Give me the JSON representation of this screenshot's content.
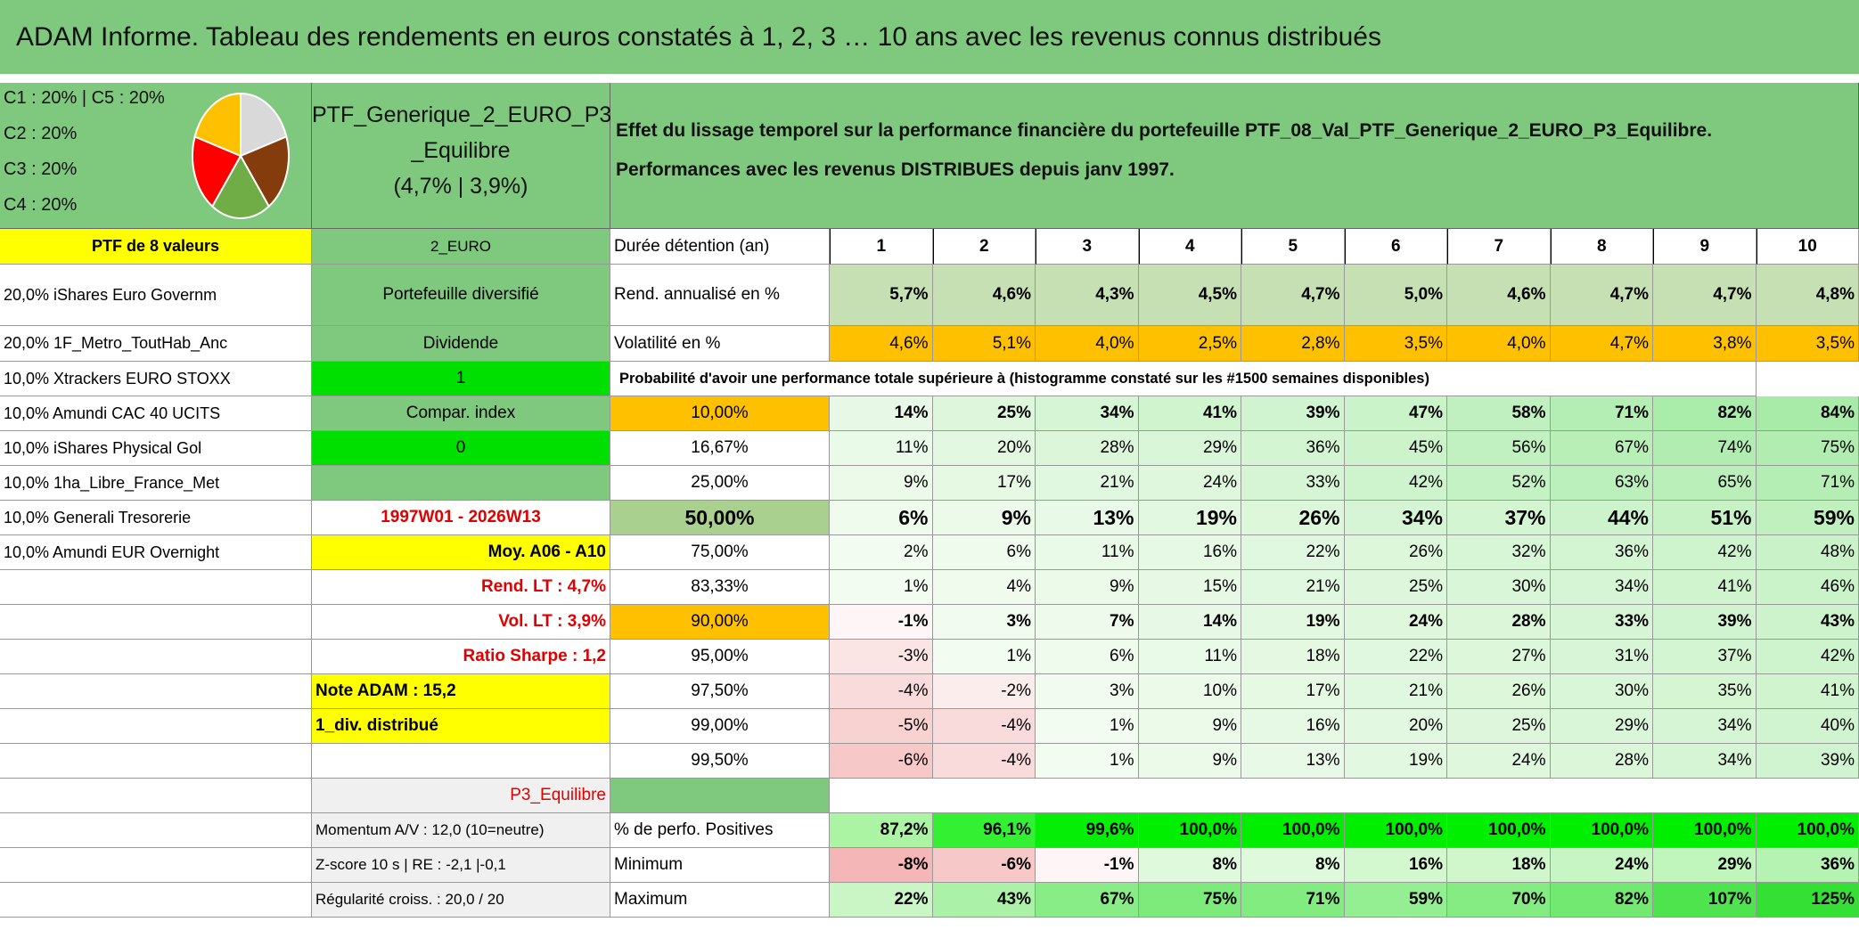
{
  "title": "ADAM Informe. Tableau des rendements en euros constatés à 1, 2, 3 … 10 ans avec les revenus connus distribués",
  "legend": [
    "C1 : 20% | C5 : 20%",
    "C2 : 20%",
    "C3 : 20%",
    "C4 : 20%"
  ],
  "pie": {
    "values": [
      20,
      20,
      20,
      20,
      20
    ],
    "colors": [
      "#d9d9d9",
      "#843c0c",
      "#70ad47",
      "#ff0000",
      "#ffc000"
    ]
  },
  "portfolio": [
    "PTF_Generique_2_EURO_P3",
    "_Equilibre",
    "(4,7% | 3,9%)"
  ],
  "description": [
    "Effet du lissage temporel sur la performance financière du portefeuille PTF_08_Val_PTF_Generique_2_EURO_P3_Equilibre.",
    "Performances avec les revenus DISTRIBUES depuis janv 1997."
  ],
  "table": {
    "rows": [
      [
        "PTF de 8 valeurs",
        "2_EURO",
        "Durée détention (an)",
        "1",
        "2",
        "3",
        "4",
        "5",
        "6",
        "7",
        "8",
        "9",
        "10"
      ],
      [
        "20,0% iShares Euro Governm",
        "Portefeuille diversifié",
        "Rend. annualisé en %",
        "5,7%",
        "4,6%",
        "4,3%",
        "4,5%",
        "4,7%",
        "5,0%",
        "4,6%",
        "4,7%",
        "4,7%",
        "4,8%"
      ],
      [
        "20,0% 1F_Metro_ToutHab_Anc",
        "Dividende",
        "Volatilité en %",
        "4,6%",
        "5,1%",
        "4,0%",
        "2,5%",
        "2,8%",
        "3,5%",
        "4,0%",
        "4,7%",
        "3,8%",
        "3,5%"
      ],
      [
        "10,0% Xtrackers EURO STOXX",
        "1",
        "Probabilité d'avoir une performance totale supérieure à (histogramme constaté sur les #1500 semaines disponibles)",
        null,
        null,
        null,
        null,
        null,
        null,
        null,
        null,
        null,
        null
      ],
      [
        "10,0% Amundi CAC 40 UCITS",
        "Compar. index",
        "10,00%",
        "14%",
        "25%",
        "34%",
        "41%",
        "39%",
        "47%",
        "58%",
        "71%",
        "82%",
        "84%"
      ],
      [
        "10,0% iShares Physical Gol",
        "0",
        "16,67%",
        "11%",
        "20%",
        "28%",
        "29%",
        "36%",
        "45%",
        "56%",
        "67%",
        "74%",
        "75%"
      ],
      [
        "10,0% 1ha_Libre_France_Met",
        null,
        "25,00%",
        "9%",
        "17%",
        "21%",
        "24%",
        "33%",
        "42%",
        "52%",
        "63%",
        "65%",
        "71%"
      ],
      [
        "10,0% Generali Tresorerie",
        "1997W01 - 2026W13",
        "50,00%",
        "6%",
        "9%",
        "13%",
        "19%",
        "26%",
        "34%",
        "37%",
        "44%",
        "51%",
        "59%"
      ],
      [
        "10,0% Amundi EUR Overnight",
        "Moy. A06 - A10",
        "75,00%",
        "2%",
        "6%",
        "11%",
        "16%",
        "22%",
        "26%",
        "32%",
        "36%",
        "42%",
        "48%"
      ],
      [
        null,
        "Rend. LT : 4,7%",
        "83,33%",
        "1%",
        "4%",
        "9%",
        "15%",
        "21%",
        "25%",
        "30%",
        "34%",
        "41%",
        "46%"
      ],
      [
        null,
        "Vol. LT : 3,9%",
        "90,00%",
        "-1%",
        "3%",
        "7%",
        "14%",
        "19%",
        "24%",
        "28%",
        "33%",
        "39%",
        "43%"
      ],
      [
        null,
        "Ratio Sharpe : 1,2",
        "95,00%",
        "-3%",
        "1%",
        "6%",
        "11%",
        "18%",
        "22%",
        "27%",
        "31%",
        "37%",
        "42%"
      ],
      [
        null,
        "Note ADAM : 15,2",
        "97,50%",
        "-4%",
        "-2%",
        "3%",
        "10%",
        "17%",
        "21%",
        "26%",
        "30%",
        "35%",
        "41%"
      ],
      [
        null,
        "1_div. distribué",
        "99,00%",
        "-5%",
        "-4%",
        "1%",
        "9%",
        "16%",
        "20%",
        "25%",
        "29%",
        "34%",
        "40%"
      ],
      [
        null,
        null,
        "99,50%",
        "-6%",
        "-4%",
        "1%",
        "9%",
        "13%",
        "19%",
        "24%",
        "28%",
        "34%",
        "39%"
      ],
      [
        null,
        "P3_Equilibre",
        null,
        null,
        null,
        null,
        null,
        null,
        null,
        null,
        null,
        null,
        null
      ],
      [
        null,
        "Momentum A/V : 12,0 (10=neutre)",
        "% de perfo. Positives",
        "87,2%",
        "96,1%",
        "99,6%",
        "100,0%",
        "100,0%",
        "100,0%",
        "100,0%",
        "100,0%",
        "100,0%",
        "100,0%"
      ],
      [
        null,
        "Z-score 10 s | RE : -2,1 |-0,1",
        "Minimum",
        "-8%",
        "-6%",
        "-1%",
        "8%",
        "8%",
        "16%",
        "18%",
        "24%",
        "29%",
        "36%"
      ],
      [
        null,
        "Régularité croiss. : 20,0 / 20",
        "Maximum",
        "22%",
        "43%",
        "67%",
        "75%",
        "71%",
        "59%",
        "70%",
        "82%",
        "107%",
        "125%"
      ]
    ]
  }
}
